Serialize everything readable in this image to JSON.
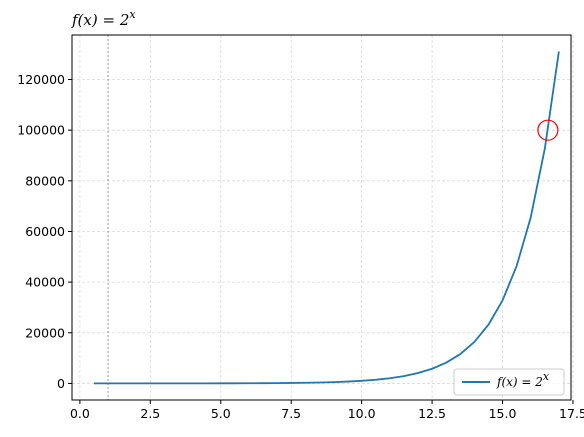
{
  "chart_data": {
    "type": "line",
    "title": {
      "base": "f(x) = 2",
      "exponent": "x"
    },
    "xlabel": "",
    "ylabel": "",
    "xlim": [
      -0.28,
      17.43
    ],
    "ylim": [
      -6550,
      137580
    ],
    "grid": true,
    "legend_placement": "bottom-right",
    "x_ticks": [
      0.0,
      2.5,
      5.0,
      7.5,
      10.0,
      12.5,
      15.0,
      17.5
    ],
    "x_tick_labels": [
      "0.0",
      "2.5",
      "5.0",
      "7.5",
      "10.0",
      "12.5",
      "15.0",
      "17.5"
    ],
    "y_ticks": [
      0,
      20000,
      40000,
      60000,
      80000,
      100000,
      120000
    ],
    "y_tick_labels": [
      "0",
      "20000",
      "40000",
      "60000",
      "80000",
      "100000",
      "120000"
    ],
    "reference_line_x": 1,
    "highlight_point": {
      "x": 16.61,
      "y": 100000
    },
    "series": [
      {
        "name": {
          "base": "f(x) = 2",
          "exponent": "x"
        },
        "color": "#1f77b4",
        "x": [
          0.5,
          1.0,
          1.5,
          2.0,
          2.5,
          3.0,
          3.5,
          4.0,
          4.5,
          5.0,
          5.5,
          6.0,
          6.5,
          7.0,
          7.5,
          8.0,
          8.5,
          9.0,
          9.5,
          10.0,
          10.5,
          11.0,
          11.5,
          12.0,
          12.5,
          13.0,
          13.5,
          14.0,
          14.5,
          15.0,
          15.5,
          16.0,
          16.5,
          17.0
        ],
        "y": [
          1.41,
          2,
          2.83,
          4,
          5.66,
          8,
          11.3,
          16,
          22.6,
          32,
          45.3,
          64,
          90.5,
          128,
          181,
          256,
          362,
          512,
          724,
          1024,
          1448,
          2048,
          2896,
          4096,
          5793,
          8192,
          11585,
          16384,
          23170,
          32768,
          46341,
          65536,
          92682,
          131072
        ]
      }
    ]
  },
  "colors": {
    "line": "#1f77b4",
    "highlight": "#ff0000",
    "grid": "#d9d9d9",
    "reference_line": "#808080"
  }
}
